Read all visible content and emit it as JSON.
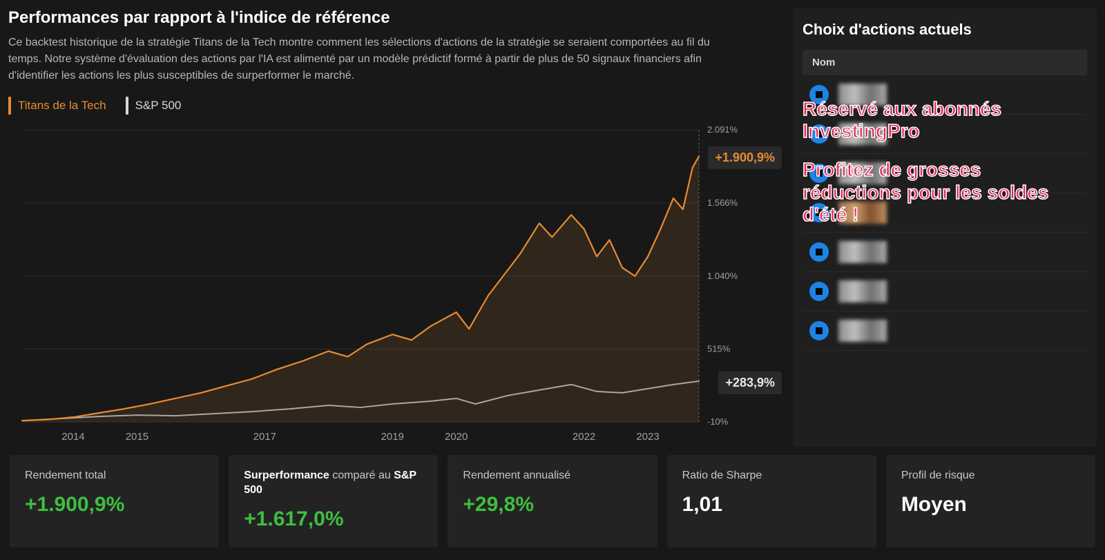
{
  "header": {
    "title": "Performances par rapport à l'indice de référence",
    "description": "Ce backtest historique de la stratégie Titans de la Tech montre comment les sélections d'actions de la stratégie se seraient comportées au fil du temps. Notre système d'évaluation des actions par l'IA est alimenté par un modèle prédictif formé à partir de plus de 50 signaux financiers afin d'identifier les actions les plus susceptibles de surperformer le marché."
  },
  "legend": {
    "active": {
      "label": "Titans de la Tech",
      "color": "#e88c2f"
    },
    "inactive": {
      "label": "S&P 500",
      "color": "#d8d8d8"
    }
  },
  "chart": {
    "type": "line",
    "background_color": "#181818",
    "grid_color": "#3a3a3a",
    "axis_label_color": "#a0a0a0",
    "axis_fontsize": 13,
    "x_years": [
      "2014",
      "2015",
      "2017",
      "2019",
      "2020",
      "2022",
      "2023"
    ],
    "x_year_values": [
      2014,
      2015,
      2017,
      2019,
      2020,
      2022,
      2023
    ],
    "x_range": [
      2013.2,
      2023.8
    ],
    "y_ticks_labels": [
      "2.091%",
      "1.566%",
      "1.040%",
      "515%",
      "-10%"
    ],
    "y_ticks_values": [
      2091,
      1566,
      1040,
      515,
      -10
    ],
    "y_range": [
      -10,
      2091
    ],
    "orange_end_badge": "+1.900,9%",
    "gray_end_badge": "+283,9%",
    "series": {
      "titans": {
        "color": "#e88c2f",
        "fill_color": "rgba(232,140,47,0.12)",
        "line_width": 2.2,
        "points": [
          [
            2013.2,
            0
          ],
          [
            2013.6,
            8
          ],
          [
            2014.0,
            25
          ],
          [
            2014.4,
            55
          ],
          [
            2014.8,
            85
          ],
          [
            2015.2,
            120
          ],
          [
            2015.6,
            160
          ],
          [
            2016.0,
            200
          ],
          [
            2016.4,
            250
          ],
          [
            2016.8,
            300
          ],
          [
            2017.2,
            370
          ],
          [
            2017.6,
            430
          ],
          [
            2018.0,
            500
          ],
          [
            2018.3,
            460
          ],
          [
            2018.6,
            550
          ],
          [
            2019.0,
            620
          ],
          [
            2019.3,
            580
          ],
          [
            2019.6,
            680
          ],
          [
            2020.0,
            780
          ],
          [
            2020.2,
            660
          ],
          [
            2020.5,
            900
          ],
          [
            2020.8,
            1080
          ],
          [
            2021.0,
            1200
          ],
          [
            2021.3,
            1420
          ],
          [
            2021.5,
            1320
          ],
          [
            2021.8,
            1480
          ],
          [
            2022.0,
            1380
          ],
          [
            2022.2,
            1180
          ],
          [
            2022.4,
            1300
          ],
          [
            2022.6,
            1100
          ],
          [
            2022.8,
            1040
          ],
          [
            2023.0,
            1180
          ],
          [
            2023.2,
            1380
          ],
          [
            2023.4,
            1600
          ],
          [
            2023.55,
            1520
          ],
          [
            2023.7,
            1820
          ],
          [
            2023.8,
            1900.9
          ]
        ]
      },
      "sp500": {
        "color": "#a8a8a8",
        "line_width": 2,
        "points": [
          [
            2013.2,
            0
          ],
          [
            2013.8,
            15
          ],
          [
            2014.4,
            30
          ],
          [
            2015.0,
            40
          ],
          [
            2015.6,
            35
          ],
          [
            2016.2,
            50
          ],
          [
            2016.8,
            65
          ],
          [
            2017.4,
            85
          ],
          [
            2018.0,
            110
          ],
          [
            2018.5,
            95
          ],
          [
            2019.0,
            120
          ],
          [
            2019.6,
            140
          ],
          [
            2020.0,
            160
          ],
          [
            2020.3,
            120
          ],
          [
            2020.8,
            180
          ],
          [
            2021.3,
            220
          ],
          [
            2021.8,
            260
          ],
          [
            2022.2,
            210
          ],
          [
            2022.6,
            200
          ],
          [
            2023.0,
            230
          ],
          [
            2023.4,
            260
          ],
          [
            2023.8,
            283.9
          ]
        ]
      }
    }
  },
  "side": {
    "title": "Choix d'actions actuels",
    "column_header": "Nom",
    "promo_line1": "Réservé aux abonnés InvestingPro",
    "promo_line2": "Profitez de grosses réductions pour les soldes d'été !",
    "row_count": 7
  },
  "stats": [
    {
      "label_html": "Rendement total",
      "value": "+1.900,9%",
      "value_class": "val-green"
    },
    {
      "label_html": "<b>Surperformance</b> comparé au <b>S&P 500</b>",
      "value": "+1.617,0%",
      "value_class": "val-green"
    },
    {
      "label_html": "Rendement annualisé",
      "value": "+29,8%",
      "value_class": "val-green"
    },
    {
      "label_html": "Ratio de Sharpe",
      "value": "1,01",
      "value_class": "val-white"
    },
    {
      "label_html": "Profil de risque",
      "value": "Moyen",
      "value_class": "val-white"
    }
  ]
}
